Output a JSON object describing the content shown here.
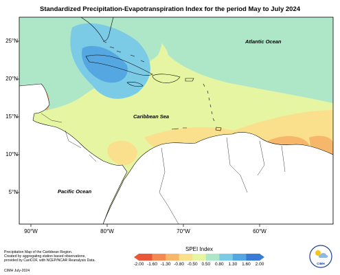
{
  "title": "Standardized Precipitation-Evapotranspiration Index for the period May to July 2024",
  "map": {
    "y_ticks": [
      "25°N",
      "20°N",
      "15°N",
      "10°N",
      "5°N"
    ],
    "x_ticks": [
      "90°W",
      "80°W",
      "70°W",
      "60°W"
    ],
    "region_labels": {
      "atlantic": "Atlantic Ocean",
      "caribbean": "Caribbean Sea",
      "pacific": "Pacific Ocean"
    }
  },
  "legend": {
    "title": "SPEI Index",
    "ticks": [
      "-2.00",
      "-1.60",
      "-1.30",
      "-0.80",
      "-0.50",
      "0.50",
      "0.80",
      "1.30",
      "1.60",
      "2.00"
    ],
    "colors": [
      "#e8573a",
      "#f28a52",
      "#f6b76a",
      "#fae08c",
      "#e5f5a2",
      "#aee7c8",
      "#7ccbe6",
      "#55a7e2",
      "#3a7bd5"
    ]
  },
  "credits": {
    "line1": "Precipitation Map of the Caribbean Region.",
    "line2": "Created by aggregating station based observations,",
    "line3": "provided by CariCOF, with NCEP/NCAR Reanalysis Data.",
    "line4": "CIMH July-2024"
  },
  "logo": {
    "text": "CIMH"
  }
}
